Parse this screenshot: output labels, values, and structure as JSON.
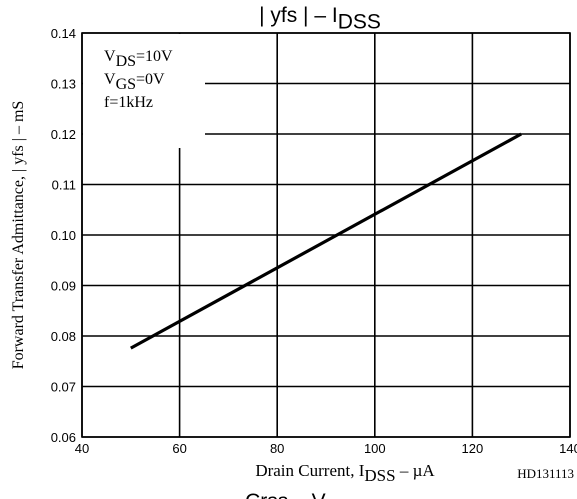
{
  "chart_data": {
    "type": "line",
    "title": {
      "main": "| yfs |  –  I",
      "sub": "DSS"
    },
    "x_label": {
      "main": "Drain Current, I",
      "sub": "DSS",
      "tail": "  –  µA"
    },
    "y_label": "Forward Transfer Admittance, | yfs |  –  mS",
    "annotations": [
      {
        "main": "V",
        "sub": "DS",
        "tail": "=10V"
      },
      {
        "main": "V",
        "sub": "GS",
        "tail": "=0V"
      },
      {
        "main": "f=1kHz"
      }
    ],
    "figure_code": "HD131113",
    "next_title": {
      "main": "Crss  –  V",
      "sub": "DS"
    },
    "x": [
      50,
      130
    ],
    "series": [
      {
        "color": "#000000",
        "values": [
          0.0776,
          0.12
        ]
      }
    ],
    "xlim": [
      40,
      140
    ],
    "xticks": [
      40,
      60,
      80,
      100,
      120,
      140
    ],
    "ylim": [
      0.06,
      0.14
    ],
    "yticks": [
      0.06,
      0.07,
      0.08,
      0.09,
      {
        "value": 0.1,
        "label": "0.10"
      },
      0.11,
      0.12,
      0.13,
      0.14
    ],
    "grid": true
  }
}
